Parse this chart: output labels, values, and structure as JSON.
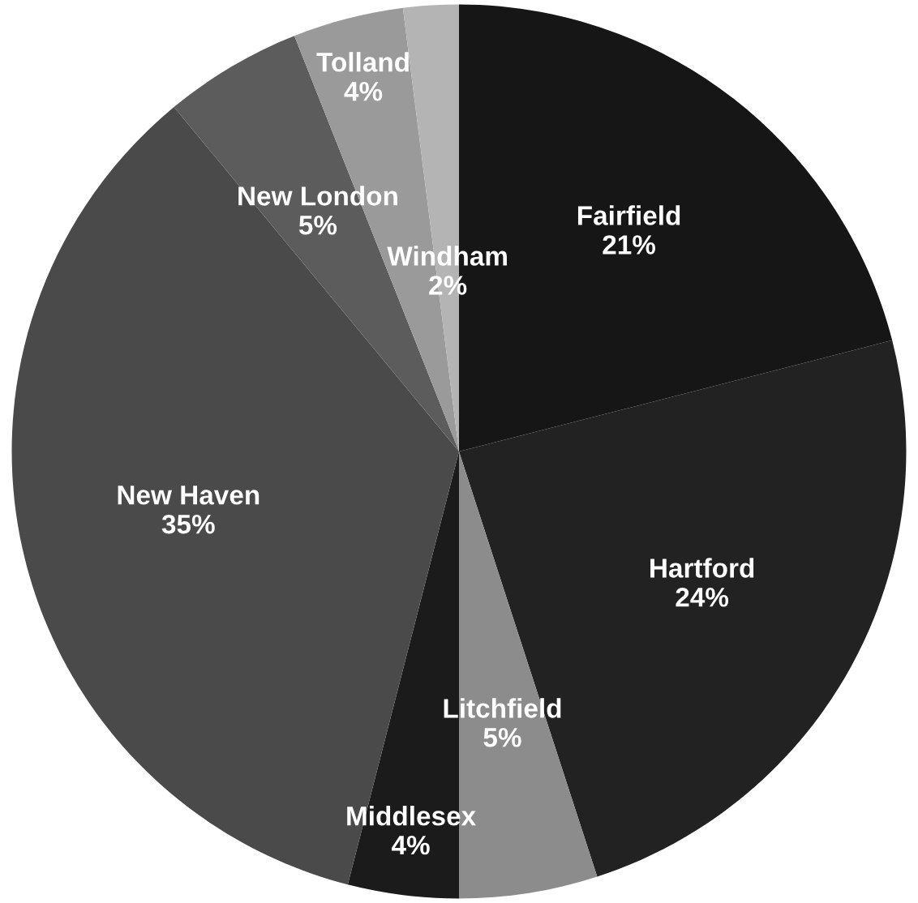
{
  "chart_data": {
    "type": "pie",
    "categories": [
      "Fairfield",
      "Hartford",
      "Litchfield",
      "Middlesex",
      "New Haven",
      "New London",
      "Tolland",
      "Windham"
    ],
    "values": [
      21,
      24,
      5,
      4,
      35,
      5,
      4,
      2
    ],
    "colors": [
      "#161616",
      "#222222",
      "#8c8c8c",
      "#1b1b1b",
      "#4a4a4a",
      "#5c5c5c",
      "#9a9a9a",
      "#b4b4b4"
    ],
    "value_labels": [
      "21%",
      "24%",
      "5%",
      "4%",
      "35%",
      "5%",
      "4%",
      "2%"
    ]
  }
}
